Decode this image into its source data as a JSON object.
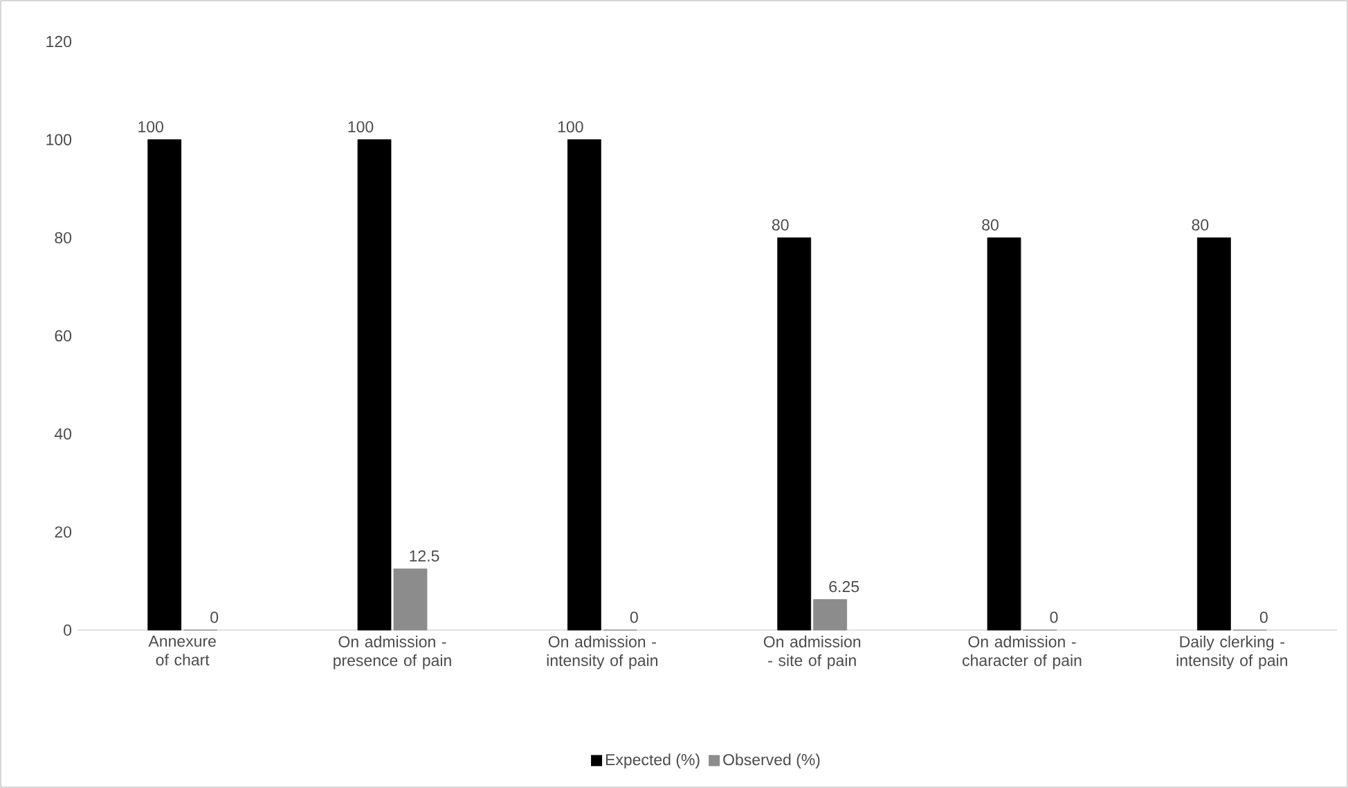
{
  "chart_data": {
    "type": "bar",
    "categories": [
      "Annexure of chart",
      "On admission - presence of pain",
      "On admission - intensity of pain",
      "On admission - site of pain",
      "On admission - character of pain",
      "Daily clerking - intensity of pain"
    ],
    "series": [
      {
        "name": "Expected (%)",
        "color": "#000000",
        "values": [
          100,
          100,
          100,
          80,
          80,
          80
        ]
      },
      {
        "name": "Observed (%)",
        "color": "#8c8c8c",
        "values": [
          0,
          12.5,
          0,
          6.25,
          0,
          0
        ]
      }
    ],
    "ylim": [
      0,
      120
    ],
    "yticks": [
      0,
      20,
      40,
      60,
      80,
      100,
      120
    ],
    "legend": "bottom",
    "data_labels": true
  }
}
